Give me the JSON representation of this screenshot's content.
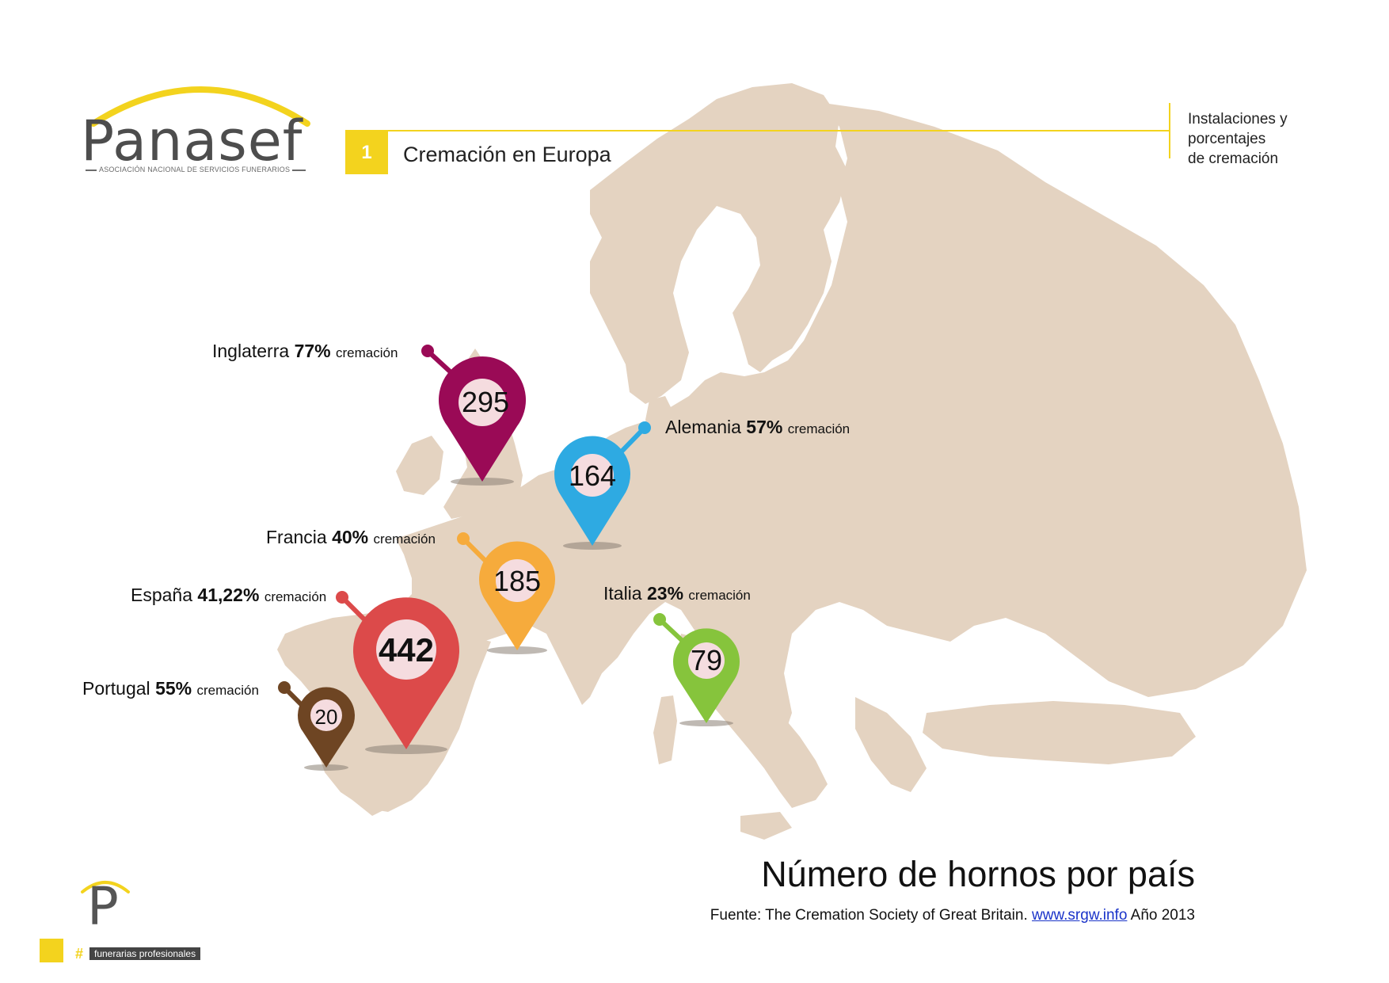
{
  "brand": {
    "name": "Panasef",
    "subtitle": "ASOCIACIÓN NACIONAL DE SERVICIOS FUNERARIOS",
    "arc_color": "#f3d31e",
    "text_color": "#4d4d4d"
  },
  "header": {
    "section_number": "1",
    "section_title": "Cremación en Europa",
    "section_description": "Instalaciones y\nporcentajes\nde cremación",
    "rule_color": "#f3d31e"
  },
  "map": {
    "land_color": "#e4d3c1",
    "markers": [
      {
        "country": "Inglaterra",
        "percent": "77%",
        "unit": "cremación",
        "ovens": "295",
        "color": "#9a0a56"
      },
      {
        "country": "Alemania",
        "percent": "57%",
        "unit": "cremación",
        "ovens": "164",
        "color": "#2eaae2"
      },
      {
        "country": "Francia",
        "percent": "40%",
        "unit": "cremación",
        "ovens": "185",
        "color": "#f6ab3c"
      },
      {
        "country": "España",
        "percent": "41,22%",
        "unit": "cremación",
        "ovens": "442",
        "color": "#dc4a4a"
      },
      {
        "country": "Italia",
        "percent": "23%",
        "unit": "cremación",
        "ovens": "79",
        "color": "#86c43c"
      },
      {
        "country": "Portugal",
        "percent": "55%",
        "unit": "cremación",
        "ovens": "20",
        "color": "#6e4523"
      }
    ]
  },
  "footer": {
    "title": "Número de hornos por país",
    "source_prefix": "Fuente: The Cremation Society of Great Britain.",
    "source_link": "www.srgw.info",
    "source_suffix": "Año 2013",
    "brand_symbol": "#",
    "brand_tag": "funerarias profesionales",
    "brand_letter": "P"
  }
}
